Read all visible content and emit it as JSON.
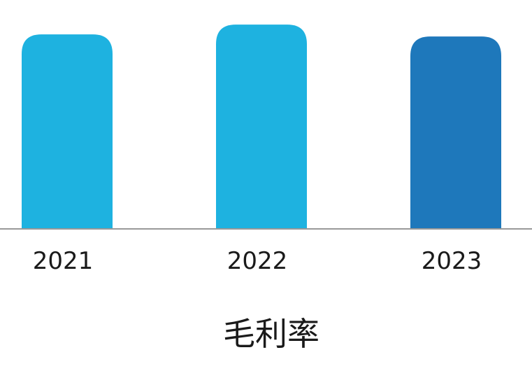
{
  "chart_data": {
    "type": "bar",
    "categories": [
      "2021",
      "2022",
      "2023"
    ],
    "values": [
      27.6,
      29.0,
      27.3
    ],
    "ylim": [
      0,
      30
    ],
    "title": "",
    "xlabel": "毛利率",
    "ylabel": "",
    "grid": false,
    "legend": "none",
    "colors": [
      "#1eb2e0",
      "#1eb2e0",
      "#1e78bb"
    ],
    "axis_color": "#999999"
  }
}
